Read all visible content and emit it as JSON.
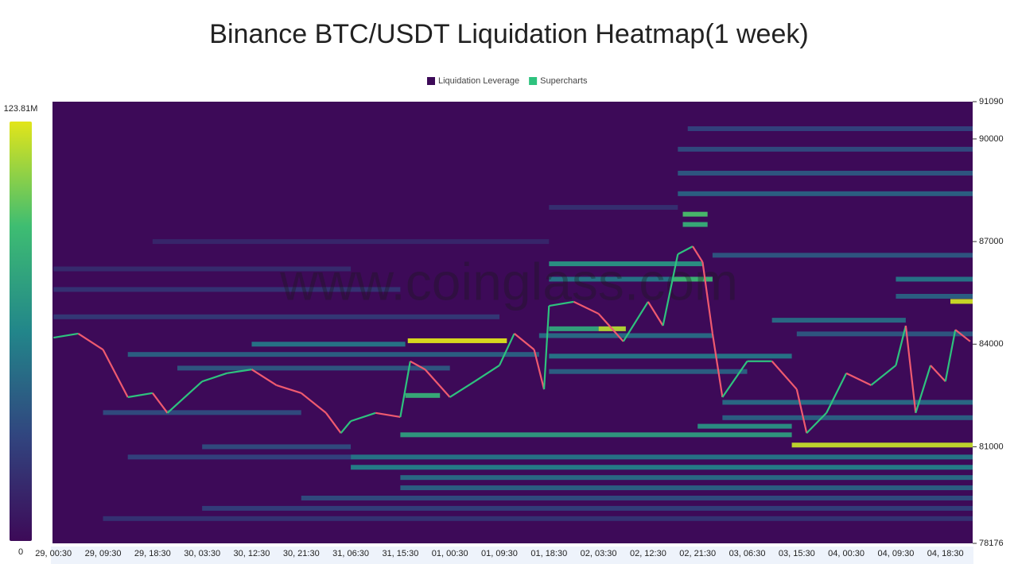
{
  "chart_data": {
    "type": "heatmap",
    "title": "Binance BTC/USDT Liquidation Heatmap(1 week)",
    "watermark": "www.coinglass.com",
    "legend": [
      {
        "name": "Liquidation Leverage",
        "color": "#3d0a58"
      },
      {
        "name": "Supercharts",
        "color": "#2ec27e"
      }
    ],
    "background": "#3d0a58",
    "colorscale": [
      "#3d0a58",
      "#31457f",
      "#22868a",
      "#3ebd72",
      "#e2e51a"
    ],
    "clim": [
      0,
      123810000
    ],
    "cticks": [
      0,
      {
        "value": 123810000,
        "label": "123.81M"
      }
    ],
    "categories": [
      "29, 00:30",
      "29, 09:30",
      "29, 18:30",
      "30, 03:30",
      "30, 12:30",
      "30, 21:30",
      "31, 06:30",
      "31, 15:30",
      "01, 00:30",
      "01, 09:30",
      "01, 18:30",
      "02, 03:30",
      "02, 12:30",
      "02, 21:30",
      "03, 06:30",
      "03, 15:30",
      "04, 00:30",
      "04, 09:30",
      "04, 18:30"
    ],
    "xlim": [
      -0.02,
      18.55
    ],
    "ylim": [
      78176,
      91090
    ],
    "yticks": [
      78176,
      81000,
      84000,
      87000,
      90000,
      91090
    ],
    "bands": [
      {
        "y": 84100,
        "x0": 7.15,
        "x1": 9.15,
        "v": 123000000
      },
      {
        "y": 84450,
        "x0": 11.0,
        "x1": 11.55,
        "v": 115000000
      },
      {
        "y": 84450,
        "x0": 10.0,
        "x1": 11.0,
        "v": 80000000
      },
      {
        "y": 85250,
        "x0": 18.1,
        "x1": 18.55,
        "v": 120000000
      },
      {
        "y": 81050,
        "x0": 14.9,
        "x1": 18.55,
        "v": 118000000
      },
      {
        "y": 82500,
        "x0": 7.1,
        "x1": 7.8,
        "v": 85000000
      },
      {
        "y": 81350,
        "x0": 7.0,
        "x1": 14.9,
        "v": 75000000
      },
      {
        "y": 81600,
        "x0": 13.0,
        "x1": 14.9,
        "v": 70000000
      },
      {
        "y": 84000,
        "x0": 4.0,
        "x1": 7.1,
        "v": 55000000
      },
      {
        "y": 83700,
        "x0": 1.5,
        "x1": 9.8,
        "v": 45000000
      },
      {
        "y": 83300,
        "x0": 2.5,
        "x1": 8.0,
        "v": 40000000
      },
      {
        "y": 84250,
        "x0": 9.8,
        "x1": 13.3,
        "v": 50000000
      },
      {
        "y": 83650,
        "x0": 10.0,
        "x1": 14.9,
        "v": 55000000
      },
      {
        "y": 83200,
        "x0": 10.0,
        "x1": 14.0,
        "v": 45000000
      },
      {
        "y": 85900,
        "x0": 12.5,
        "x1": 13.3,
        "v": 90000000
      },
      {
        "y": 86350,
        "x0": 10.0,
        "x1": 13.1,
        "v": 70000000
      },
      {
        "y": 85900,
        "x0": 10.0,
        "x1": 12.5,
        "v": 55000000
      },
      {
        "y": 87800,
        "x0": 12.7,
        "x1": 13.2,
        "v": 95000000
      },
      {
        "y": 87500,
        "x0": 12.7,
        "x1": 13.2,
        "v": 85000000
      },
      {
        "y": 88400,
        "x0": 12.6,
        "x1": 18.55,
        "v": 45000000
      },
      {
        "y": 89000,
        "x0": 12.6,
        "x1": 18.55,
        "v": 40000000
      },
      {
        "y": 89700,
        "x0": 12.6,
        "x1": 18.55,
        "v": 35000000
      },
      {
        "y": 90300,
        "x0": 12.8,
        "x1": 18.55,
        "v": 30000000
      },
      {
        "y": 86600,
        "x0": 13.3,
        "x1": 18.55,
        "v": 40000000
      },
      {
        "y": 85900,
        "x0": 17.0,
        "x1": 18.55,
        "v": 55000000
      },
      {
        "y": 85400,
        "x0": 17.0,
        "x1": 18.55,
        "v": 45000000
      },
      {
        "y": 84700,
        "x0": 14.5,
        "x1": 17.2,
        "v": 50000000
      },
      {
        "y": 84300,
        "x0": 15.0,
        "x1": 18.55,
        "v": 40000000
      },
      {
        "y": 82300,
        "x0": 13.5,
        "x1": 18.55,
        "v": 50000000
      },
      {
        "y": 81850,
        "x0": 13.5,
        "x1": 18.55,
        "v": 45000000
      },
      {
        "y": 80700,
        "x0": 6.0,
        "x1": 18.55,
        "v": 55000000
      },
      {
        "y": 80400,
        "x0": 6.0,
        "x1": 18.55,
        "v": 60000000
      },
      {
        "y": 80100,
        "x0": 7.0,
        "x1": 18.55,
        "v": 50000000
      },
      {
        "y": 79800,
        "x0": 7.0,
        "x1": 18.55,
        "v": 45000000
      },
      {
        "y": 79500,
        "x0": 5.0,
        "x1": 18.55,
        "v": 35000000
      },
      {
        "y": 79200,
        "x0": 3.0,
        "x1": 18.55,
        "v": 28000000
      },
      {
        "y": 78900,
        "x0": 1.0,
        "x1": 18.55,
        "v": 22000000
      },
      {
        "y": 81000,
        "x0": 3.0,
        "x1": 6.0,
        "v": 35000000
      },
      {
        "y": 80700,
        "x0": 1.5,
        "x1": 6.0,
        "v": 30000000
      },
      {
        "y": 82000,
        "x0": 1.0,
        "x1": 5.0,
        "v": 35000000
      },
      {
        "y": 85600,
        "x0": 0.0,
        "x1": 7.0,
        "v": 22000000
      },
      {
        "y": 86200,
        "x0": 0.0,
        "x1": 6.0,
        "v": 18000000
      },
      {
        "y": 87000,
        "x0": 2.0,
        "x1": 10.0,
        "v": 15000000
      },
      {
        "y": 88000,
        "x0": 10.0,
        "x1": 12.6,
        "v": 20000000
      },
      {
        "y": 84800,
        "x0": 0.0,
        "x1": 9.0,
        "v": 25000000
      }
    ],
    "price": {
      "up_color": "#2ec27e",
      "down_color": "#ef5a6f",
      "x": [
        0,
        0.5,
        1,
        1.5,
        2,
        2.3,
        3,
        3.5,
        4,
        4.5,
        5,
        5.5,
        5.8,
        6,
        6.5,
        7,
        7.2,
        7.5,
        8,
        8.5,
        9,
        9.3,
        9.7,
        9.9,
        10,
        10.5,
        11,
        11.5,
        12,
        12.3,
        12.6,
        12.9,
        13.1,
        13.3,
        13.5,
        14,
        14.5,
        15,
        15.2,
        15.6,
        16,
        16.5,
        17,
        17.2,
        17.4,
        17.7,
        18,
        18.2,
        18.5
      ],
      "values": [
        84190,
        84310,
        83840,
        82450,
        82570,
        81990,
        82910,
        83150,
        83260,
        82800,
        82570,
        81990,
        81400,
        81750,
        81990,
        81870,
        83500,
        83260,
        82450,
        82910,
        83380,
        84310,
        83840,
        82680,
        85120,
        85240,
        84890,
        84080,
        85240,
        84540,
        86630,
        86860,
        86400,
        84310,
        82450,
        83500,
        83500,
        82680,
        81400,
        81990,
        83150,
        82800,
        83380,
        84540,
        81990,
        83380,
        82910,
        84420,
        84080
      ]
    }
  }
}
